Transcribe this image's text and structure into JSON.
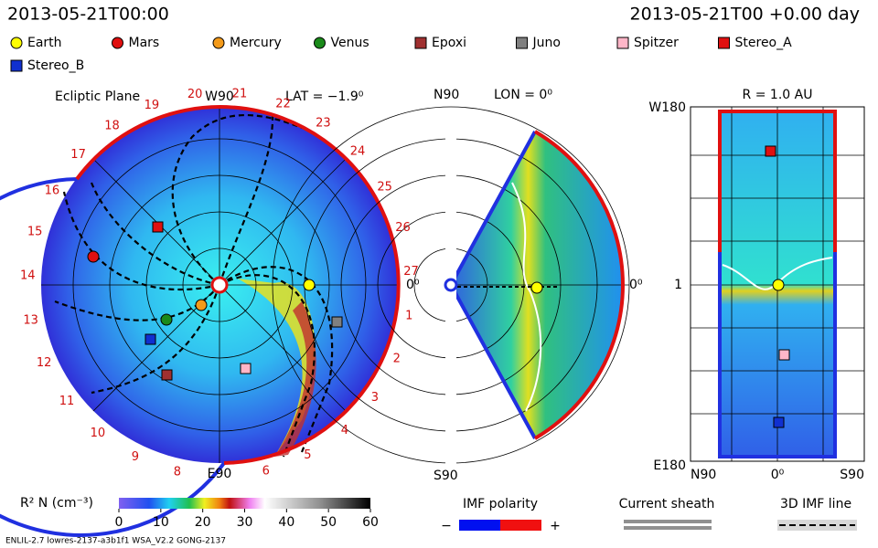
{
  "header": {
    "datetime": "2013-05-21T00:00",
    "elapsed": "2013-05-21T00 +0.00 day"
  },
  "legend": [
    {
      "label": "Earth",
      "color": "#ffff00",
      "shape": "circle"
    },
    {
      "label": "Mars",
      "color": "#e01010",
      "shape": "circle"
    },
    {
      "label": "Mercury",
      "color": "#f39a1a",
      "shape": "circle"
    },
    {
      "label": "Venus",
      "color": "#1a8a1a",
      "shape": "circle"
    },
    {
      "label": "Epoxi",
      "color": "#a03030",
      "shape": "square"
    },
    {
      "label": "Juno",
      "color": "#808080",
      "shape": "square"
    },
    {
      "label": "Spitzer",
      "color": "#ffb6c8",
      "shape": "square"
    },
    {
      "label": "Stereo_A",
      "color": "#e01010",
      "shape": "square"
    },
    {
      "label": "Stereo_B",
      "color": "#1030d0",
      "shape": "square"
    }
  ],
  "ecliptic": {
    "title": "Ecliptic Plane",
    "lat": "LAT = −1.9⁰",
    "top": "W90",
    "bottom": "E90",
    "right": "0⁰",
    "carrington": [
      "1",
      "2",
      "3",
      "4",
      "5",
      "6",
      "8",
      "9",
      "10",
      "11",
      "12",
      "13",
      "14",
      "15",
      "16",
      "17",
      "18",
      "19",
      "20",
      "21",
      "22",
      "23",
      "24",
      "25",
      "26",
      "27"
    ]
  },
  "meridional": {
    "lon": "LON = 0⁰",
    "top": "N90",
    "bottom": "S90",
    "right": "0⁰"
  },
  "radial": {
    "title": "R = 1.0 AU",
    "top": "W180",
    "middle": "1",
    "bottom": "E180",
    "left": "N90",
    "center": "0⁰",
    "right": "S90"
  },
  "colorbar": {
    "label": "R² N (cm⁻³)",
    "range": [
      0,
      60
    ],
    "ticks": [
      0,
      10,
      20,
      30,
      40,
      50,
      60
    ]
  },
  "imf": {
    "title": "IMF polarity",
    "minus": "−",
    "plus": "+"
  },
  "sheath": {
    "title": "Current sheath"
  },
  "imf_line": {
    "title": "3D IMF line"
  },
  "footer": {
    "text": "ENLIL-2.7 lowres-2137-a3b1f1 WSA_V2.2 GONG-2137"
  }
}
